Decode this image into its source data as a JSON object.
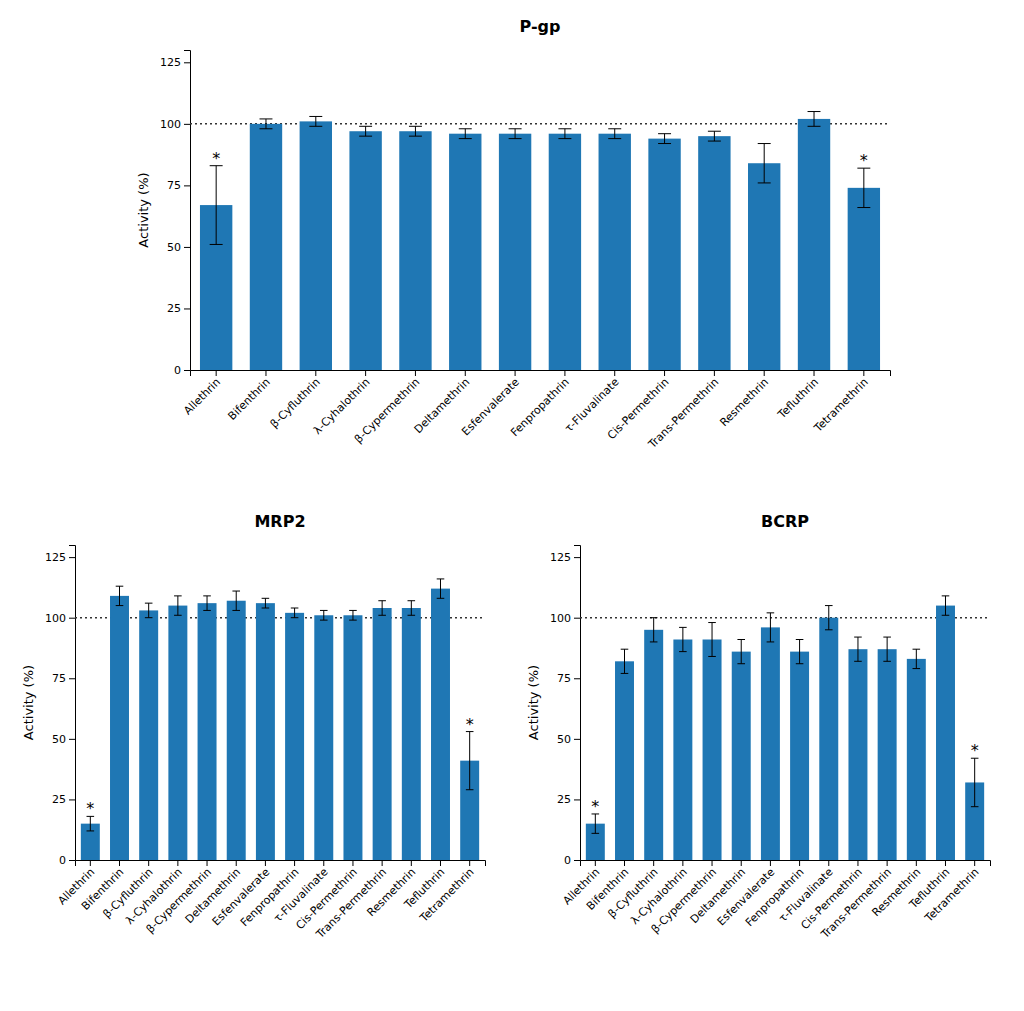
{
  "chart_data": [
    {
      "type": "bar",
      "title": "P-gp",
      "categories": [
        "Allethrin",
        "Bifenthrin",
        "β-Cyfluthrin",
        "λ-Cyhalothrin",
        "β-Cypermethrin",
        "Deltamethrin",
        "Esfenvalerate",
        "Fenpropathrin",
        "τ-Fluvalinate",
        "Cis-Permethrin",
        "Trans-Permethrin",
        "Resmethrin",
        "Tefluthrin",
        "Tetramethrin"
      ],
      "values": [
        67,
        100,
        101,
        97,
        97,
        96,
        96,
        96,
        96,
        94,
        95,
        84,
        102,
        74
      ],
      "errors": [
        16,
        2,
        2,
        2,
        2,
        2,
        2,
        2,
        2,
        2,
        2,
        8,
        3,
        8
      ],
      "annotations": [
        {
          "category": "Allethrin",
          "text": "*"
        },
        {
          "category": "Tetramethrin",
          "text": "*"
        }
      ],
      "reference_line": 100,
      "ylabel": "Activity (%)",
      "ylim": [
        0,
        130
      ],
      "yticks": [
        0,
        25,
        50,
        75,
        100,
        125
      ],
      "grid": false
    },
    {
      "type": "bar",
      "title": "MRP2",
      "categories": [
        "Allethrin",
        "Bifenthrin",
        "β-Cyfluthrin",
        "λ-Cyhalothrin",
        "β-Cypermethrin",
        "Deltamethrin",
        "Esfenvalerate",
        "Fenpropathrin",
        "τ-Fluvalinate",
        "Cis-Permethrin",
        "Trans-Permethrin",
        "Resmethrin",
        "Tefluthrin",
        "Tetramethrin"
      ],
      "values": [
        15,
        109,
        103,
        105,
        106,
        107,
        106,
        102,
        101,
        101,
        104,
        104,
        112,
        41
      ],
      "errors": [
        3,
        4,
        3,
        4,
        3,
        4,
        2,
        2,
        2,
        2,
        3,
        3,
        4,
        12
      ],
      "annotations": [
        {
          "category": "Allethrin",
          "text": "*"
        },
        {
          "category": "Tetramethrin",
          "text": "*"
        }
      ],
      "reference_line": 100,
      "ylabel": "Activity (%)",
      "ylim": [
        0,
        130
      ],
      "yticks": [
        0,
        25,
        50,
        75,
        100,
        125
      ],
      "grid": false
    },
    {
      "type": "bar",
      "title": "BCRP",
      "categories": [
        "Allethrin",
        "Bifenthrin",
        "β-Cyfluthrin",
        "λ-Cyhalothrin",
        "β-Cypermethrin",
        "Deltamethrin",
        "Esfenvalerate",
        "Fenpropathrin",
        "τ-Fluvalinate",
        "Cis-Permethrin",
        "Trans-Permethrin",
        "Resmethrin",
        "Tefluthrin",
        "Tetramethrin"
      ],
      "values": [
        15,
        82,
        95,
        91,
        91,
        86,
        96,
        86,
        100,
        87,
        87,
        83,
        105,
        32
      ],
      "errors": [
        4,
        5,
        5,
        5,
        7,
        5,
        6,
        5,
        5,
        5,
        5,
        4,
        4,
        10
      ],
      "annotations": [
        {
          "category": "Allethrin",
          "text": "*"
        },
        {
          "category": "Tetramethrin",
          "text": "*"
        }
      ],
      "reference_line": 100,
      "ylabel": "Activity (%)",
      "ylim": [
        0,
        130
      ],
      "yticks": [
        0,
        25,
        50,
        75,
        100,
        125
      ],
      "grid": false
    }
  ]
}
